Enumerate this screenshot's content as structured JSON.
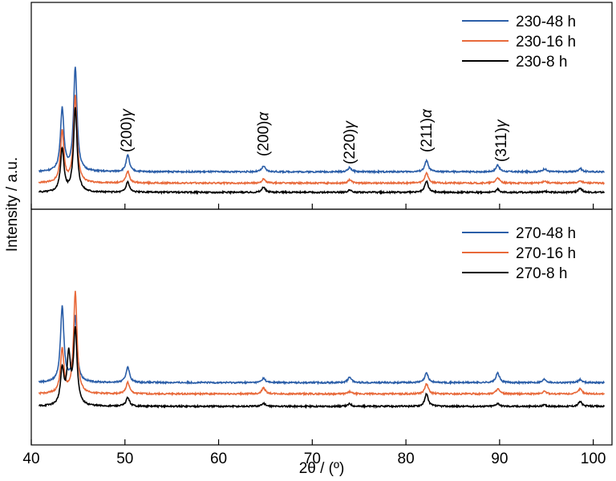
{
  "chart_data": {
    "type": "line",
    "xlabel": "2θ / (º)",
    "ylabel": "Intensity / a.u.",
    "xlim": [
      40,
      102
    ],
    "xticks": [
      "40",
      "50",
      "60",
      "70",
      "80",
      "90",
      "100"
    ],
    "grid": false,
    "colors": {
      "48h": "#2b5ea8",
      "16h": "#e8693a",
      "8h": "#000000"
    },
    "panels": [
      {
        "legend_position": "top-right",
        "peak_labels": [
          {
            "x": 50.2,
            "text": "(200)",
            "phase": "γ"
          },
          {
            "x": 64.8,
            "text": "(200)",
            "phase": "α"
          },
          {
            "x": 74.0,
            "text": "(220)",
            "phase": "γ"
          },
          {
            "x": 82.2,
            "text": "(211)",
            "phase": "α"
          },
          {
            "x": 90.2,
            "text": "(311)",
            "phase": "γ"
          }
        ],
        "series": [
          {
            "name": "230-48 h",
            "color_key": "48h",
            "baseline": 0.5,
            "peaks": [
              [
                43.3,
                14.5
              ],
              [
                44.7,
                24.0
              ],
              [
                50.3,
                3.8
              ],
              [
                64.8,
                1.3
              ],
              [
                74.0,
                1.0
              ],
              [
                82.2,
                2.6
              ],
              [
                89.8,
                1.6
              ],
              [
                94.8,
                0.7
              ],
              [
                98.6,
                0.8
              ]
            ]
          },
          {
            "name": "230-16 h",
            "color_key": "16h",
            "baseline": 0.3,
            "peaks": [
              [
                43.3,
                12.0
              ],
              [
                44.7,
                20.0
              ],
              [
                50.3,
                2.8
              ],
              [
                64.8,
                0.9
              ],
              [
                74.0,
                0.8
              ],
              [
                82.2,
                2.4
              ],
              [
                89.8,
                1.3
              ],
              [
                94.8,
                0.5
              ],
              [
                98.6,
                0.6
              ]
            ]
          },
          {
            "name": "230-8 h",
            "color_key": "8h",
            "baseline": 0.2,
            "peaks": [
              [
                43.3,
                10.0
              ],
              [
                44.7,
                19.5
              ],
              [
                50.3,
                2.4
              ],
              [
                64.8,
                1.2
              ],
              [
                74.0,
                0.5
              ],
              [
                82.2,
                2.6
              ],
              [
                89.8,
                0.7
              ],
              [
                94.8,
                0.3
              ],
              [
                98.6,
                1.0
              ]
            ]
          }
        ]
      },
      {
        "legend_position": "top-right",
        "series": [
          {
            "name": "270-48 h",
            "color_key": "48h",
            "baseline": 0.5,
            "peaks": [
              [
                43.3,
                17.0
              ],
              [
                44.7,
                15.0
              ],
              [
                50.3,
                3.6
              ],
              [
                64.8,
                1.0
              ],
              [
                74.0,
                1.3
              ],
              [
                82.2,
                2.2
              ],
              [
                89.8,
                2.2
              ],
              [
                94.8,
                0.8
              ],
              [
                98.6,
                0.7
              ]
            ]
          },
          {
            "name": "270-16 h",
            "color_key": "16h",
            "baseline": 0.3,
            "peaks": [
              [
                43.3,
                10.0
              ],
              [
                44.7,
                23.0
              ],
              [
                50.3,
                2.6
              ],
              [
                64.8,
                1.4
              ],
              [
                74.0,
                0.5
              ],
              [
                82.2,
                2.3
              ],
              [
                89.8,
                1.2
              ],
              [
                94.8,
                0.6
              ],
              [
                98.6,
                1.2
              ]
            ]
          },
          {
            "name": "270-8 h",
            "color_key": "8h",
            "baseline": 0.2,
            "peaks": [
              [
                43.3,
                8.0
              ],
              [
                44.0,
                11.0
              ],
              [
                44.7,
                17.0
              ],
              [
                50.3,
                2.0
              ],
              [
                64.8,
                0.7
              ],
              [
                74.0,
                0.6
              ],
              [
                82.2,
                2.8
              ],
              [
                89.8,
                0.7
              ],
              [
                94.8,
                0.3
              ],
              [
                98.6,
                1.1
              ]
            ]
          }
        ]
      }
    ]
  }
}
